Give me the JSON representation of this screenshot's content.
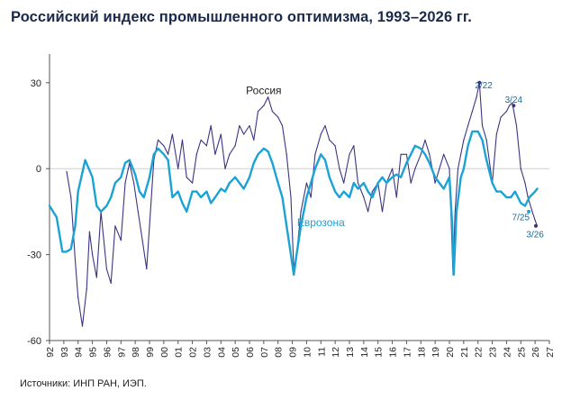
{
  "title": "Российский индекс промышленного оптимизма, 1993–2026 гг.",
  "source": "Источники: ИНП РАН, ИЭП.",
  "chart_data": {
    "type": "line",
    "xlim": [
      1992,
      2027
    ],
    "ylim": [
      -60,
      40
    ],
    "y_ticks": [
      {
        "value": 30,
        "label": "30"
      },
      {
        "value": 0,
        "label": "0"
      },
      {
        "value": -30,
        "label": "-30"
      },
      {
        "value": -60,
        "label": "-60"
      }
    ],
    "x_ticks": [
      {
        "value": 1992,
        "label": "92"
      },
      {
        "value": 1993,
        "label": "93"
      },
      {
        "value": 1994,
        "label": "94"
      },
      {
        "value": 1995,
        "label": "95"
      },
      {
        "value": 1996,
        "label": "96"
      },
      {
        "value": 1997,
        "label": "97"
      },
      {
        "value": 1998,
        "label": "98"
      },
      {
        "value": 1999,
        "label": "99"
      },
      {
        "value": 2000,
        "label": "00"
      },
      {
        "value": 2001,
        "label": "01"
      },
      {
        "value": 2002,
        "label": "02"
      },
      {
        "value": 2003,
        "label": "03"
      },
      {
        "value": 2004,
        "label": "04"
      },
      {
        "value": 2005,
        "label": "05"
      },
      {
        "value": 2006,
        "label": "06"
      },
      {
        "value": 2007,
        "label": "07"
      },
      {
        "value": 2008,
        "label": "08"
      },
      {
        "value": 2009,
        "label": "09"
      },
      {
        "value": 2010,
        "label": "10"
      },
      {
        "value": 2011,
        "label": "11"
      },
      {
        "value": 2012,
        "label": "12"
      },
      {
        "value": 2013,
        "label": "13"
      },
      {
        "value": 2014,
        "label": "14"
      },
      {
        "value": 2015,
        "label": "15"
      },
      {
        "value": 2016,
        "label": "16"
      },
      {
        "value": 2017,
        "label": "17"
      },
      {
        "value": 2018,
        "label": "18"
      },
      {
        "value": 2019,
        "label": "19"
      },
      {
        "value": 2020,
        "label": "20"
      },
      {
        "value": 2021,
        "label": "21"
      },
      {
        "value": 2022,
        "label": "22"
      },
      {
        "value": 2023,
        "label": "23"
      },
      {
        "value": 2024,
        "label": "24"
      },
      {
        "value": 2025,
        "label": "25"
      },
      {
        "value": 2026,
        "label": "26"
      },
      {
        "value": 2027,
        "label": "27"
      }
    ],
    "zero_line": true,
    "series": [
      {
        "name": "Россия",
        "color": "#3a3580",
        "x": [
          1993.2,
          1993.5,
          1993.8,
          1994.0,
          1994.3,
          1994.6,
          1994.8,
          1995.0,
          1995.3,
          1995.6,
          1996.0,
          1996.3,
          1996.6,
          1997.0,
          1997.3,
          1997.6,
          1997.9,
          1998.2,
          1998.5,
          1998.8,
          1999.0,
          1999.3,
          1999.6,
          2000.0,
          2000.3,
          2000.6,
          2001.0,
          2001.3,
          2001.6,
          2002.0,
          2002.3,
          2002.6,
          2003.0,
          2003.3,
          2003.6,
          2004.0,
          2004.3,
          2004.6,
          2005.0,
          2005.3,
          2005.6,
          2006.0,
          2006.3,
          2006.6,
          2007.0,
          2007.3,
          2007.6,
          2008.0,
          2008.3,
          2008.6,
          2008.9,
          2009.1,
          2009.3,
          2009.6,
          2010.0,
          2010.3,
          2010.6,
          2011.0,
          2011.3,
          2011.6,
          2012.0,
          2012.3,
          2012.6,
          2013.0,
          2013.3,
          2013.6,
          2014.0,
          2014.3,
          2014.6,
          2015.0,
          2015.3,
          2015.6,
          2016.0,
          2016.3,
          2016.6,
          2017.0,
          2017.3,
          2017.6,
          2018.0,
          2018.3,
          2018.6,
          2019.0,
          2019.3,
          2019.6,
          2020.0,
          2020.25,
          2020.4,
          2020.6,
          2021.0,
          2021.3,
          2021.6,
          2021.9,
          2022.1,
          2022.3,
          2022.6,
          2023.0,
          2023.3,
          2023.6,
          2024.0,
          2024.2,
          2024.4,
          2024.7,
          2025.0,
          2025.3,
          2025.5,
          2025.8,
          2026.0,
          2026.15
        ],
        "y": [
          -1,
          -10,
          -32,
          -45,
          -55,
          -42,
          -22,
          -30,
          -38,
          -15,
          -35,
          -40,
          -20,
          -25,
          -5,
          2,
          -5,
          -15,
          -25,
          -35,
          -20,
          3,
          10,
          8,
          5,
          12,
          0,
          10,
          -3,
          -5,
          5,
          10,
          8,
          15,
          5,
          12,
          0,
          5,
          8,
          15,
          12,
          15,
          10,
          20,
          22,
          25,
          20,
          18,
          15,
          5,
          -10,
          -35,
          -30,
          -15,
          -5,
          -10,
          5,
          12,
          15,
          10,
          8,
          0,
          -5,
          5,
          8,
          -5,
          -10,
          -15,
          -8,
          -5,
          -15,
          -5,
          0,
          -10,
          5,
          5,
          -5,
          0,
          5,
          10,
          5,
          -5,
          0,
          5,
          0,
          -37,
          -15,
          0,
          10,
          15,
          20,
          25,
          30,
          15,
          10,
          -5,
          12,
          18,
          20,
          22,
          23,
          15,
          0,
          -5,
          -10,
          -15,
          -18,
          -20
        ]
      },
      {
        "name": "Еврозона",
        "color": "#1aa3d4",
        "x": [
          1992.0,
          1992.5,
          1992.9,
          1993.2,
          1993.5,
          1993.8,
          1994.0,
          1994.5,
          1995.0,
          1995.3,
          1995.6,
          1996.0,
          1996.3,
          1996.6,
          1997.0,
          1997.3,
          1997.6,
          1998.0,
          1998.3,
          1998.6,
          1999.0,
          1999.3,
          1999.6,
          2000.0,
          2000.3,
          2000.6,
          2001.0,
          2001.3,
          2001.6,
          2002.0,
          2002.3,
          2002.6,
          2003.0,
          2003.3,
          2003.6,
          2004.0,
          2004.3,
          2004.6,
          2005.0,
          2005.3,
          2005.6,
          2006.0,
          2006.3,
          2006.6,
          2007.0,
          2007.3,
          2007.6,
          2008.0,
          2008.3,
          2008.6,
          2008.9,
          2009.1,
          2009.3,
          2009.6,
          2010.0,
          2010.3,
          2010.6,
          2011.0,
          2011.3,
          2011.6,
          2012.0,
          2012.3,
          2012.6,
          2013.0,
          2013.3,
          2013.6,
          2014.0,
          2014.3,
          2014.6,
          2015.0,
          2015.3,
          2015.6,
          2016.0,
          2016.3,
          2016.6,
          2017.0,
          2017.3,
          2017.6,
          2018.0,
          2018.3,
          2018.6,
          2019.0,
          2019.3,
          2019.6,
          2020.0,
          2020.2,
          2020.3,
          2020.5,
          2020.8,
          2021.0,
          2021.3,
          2021.6,
          2022.0,
          2022.3,
          2022.6,
          2023.0,
          2023.3,
          2023.6,
          2024.0,
          2024.3,
          2024.6,
          2025.0,
          2025.3,
          2025.6,
          2026.0,
          2026.15
        ],
        "y": [
          -13,
          -17,
          -29,
          -29,
          -28,
          -20,
          -8,
          3,
          -3,
          -13,
          -15,
          -13,
          -10,
          -5,
          -3,
          2,
          3,
          -2,
          -8,
          -10,
          -3,
          5,
          7,
          5,
          3,
          -10,
          -8,
          -12,
          -15,
          -8,
          -8,
          -10,
          -8,
          -12,
          -10,
          -7,
          -8,
          -5,
          -3,
          -5,
          -7,
          -3,
          2,
          5,
          7,
          6,
          2,
          -5,
          -10,
          -20,
          -30,
          -37,
          -30,
          -20,
          -10,
          -5,
          0,
          5,
          3,
          -3,
          -8,
          -10,
          -8,
          -10,
          -5,
          -7,
          -5,
          -8,
          -10,
          -5,
          -3,
          -5,
          -3,
          -2,
          -3,
          2,
          5,
          8,
          7,
          5,
          2,
          -3,
          -5,
          -7,
          -3,
          -20,
          -37,
          -15,
          -3,
          0,
          8,
          13,
          13,
          10,
          3,
          -5,
          -8,
          -8,
          -10,
          -10,
          -8,
          -12,
          -13,
          -10,
          -8,
          -7
        ]
      }
    ],
    "annotations": [
      {
        "text": "Россия",
        "x": 2007.0,
        "y": 26
      },
      {
        "text": "Еврозона",
        "x": 2011.0,
        "y": -20
      },
      {
        "text": "2/22",
        "x": 2022.4,
        "y": 28
      },
      {
        "text": "3/24",
        "x": 2024.5,
        "y": 23
      },
      {
        "text": "7/25",
        "x": 2025.0,
        "y": -18
      },
      {
        "text": "3/26",
        "x": 2026.0,
        "y": -24
      }
    ]
  }
}
